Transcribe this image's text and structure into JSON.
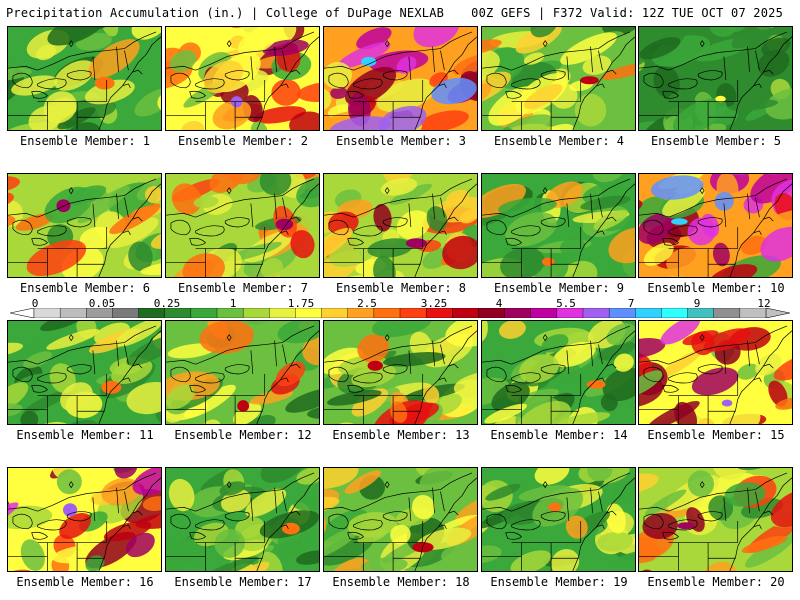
{
  "header": {
    "left_title": "Precipitation Accumulation (in.) | College of DuPage NEXLAB",
    "right_title": "00Z GEFS | F372 Valid: 12Z TUE OCT 07 2025"
  },
  "member_prefix": "Ensemble Member: ",
  "members": [
    {
      "id": 1,
      "label": "Ensemble Member: 1",
      "max_in": 2.5
    },
    {
      "id": 2,
      "label": "Ensemble Member: 2",
      "max_in": 5.5
    },
    {
      "id": 3,
      "label": "Ensemble Member: 3",
      "max_in": 7
    },
    {
      "id": 4,
      "label": "Ensemble Member: 4",
      "max_in": 3.25
    },
    {
      "id": 5,
      "label": "Ensemble Member: 5",
      "max_in": 1.75
    },
    {
      "id": 6,
      "label": "Ensemble Member: 6",
      "max_in": 4
    },
    {
      "id": 7,
      "label": "Ensemble Member: 7",
      "max_in": 4
    },
    {
      "id": 8,
      "label": "Ensemble Member: 8",
      "max_in": 4
    },
    {
      "id": 9,
      "label": "Ensemble Member: 9",
      "max_in": 2.5
    },
    {
      "id": 10,
      "label": "Ensemble Member: 10",
      "max_in": 7
    },
    {
      "id": 11,
      "label": "Ensemble Member: 11",
      "max_in": 2.5
    },
    {
      "id": 12,
      "label": "Ensemble Member: 12",
      "max_in": 3.25
    },
    {
      "id": 13,
      "label": "Ensemble Member: 13",
      "max_in": 3.25
    },
    {
      "id": 14,
      "label": "Ensemble Member: 14",
      "max_in": 2.5
    },
    {
      "id": 15,
      "label": "Ensemble Member: 15",
      "max_in": 5.5
    },
    {
      "id": 16,
      "label": "Ensemble Member: 16",
      "max_in": 5.5
    },
    {
      "id": 17,
      "label": "Ensemble Member: 17",
      "max_in": 2.5
    },
    {
      "id": 18,
      "label": "Ensemble Member: 18",
      "max_in": 3.25
    },
    {
      "id": 19,
      "label": "Ensemble Member: 19",
      "max_in": 2.5
    },
    {
      "id": 20,
      "label": "Ensemble Member: 20",
      "max_in": 4
    }
  ],
  "colorbar": {
    "tick_labels": [
      "0",
      "0.05",
      "0.25",
      "1",
      "1.75",
      "2.5",
      "3.25",
      "4",
      "5.5",
      "7",
      "9",
      "12"
    ],
    "colors": [
      "#d9d9d9",
      "#bdbdbd",
      "#9c9c9c",
      "#7a7a7a",
      "#1f6b1f",
      "#2e8b2e",
      "#3aa83a",
      "#6cc040",
      "#a8d83a",
      "#e8f040",
      "#ffff40",
      "#ffd030",
      "#ffa020",
      "#ff7010",
      "#ff4010",
      "#e81010",
      "#c00010",
      "#900020",
      "#a00060",
      "#c000a0",
      "#e030e0",
      "#a060f0",
      "#6090ff",
      "#30d0ff",
      "#30ffff",
      "#40c0c0",
      "#909090",
      "#c0c0c0"
    ]
  }
}
